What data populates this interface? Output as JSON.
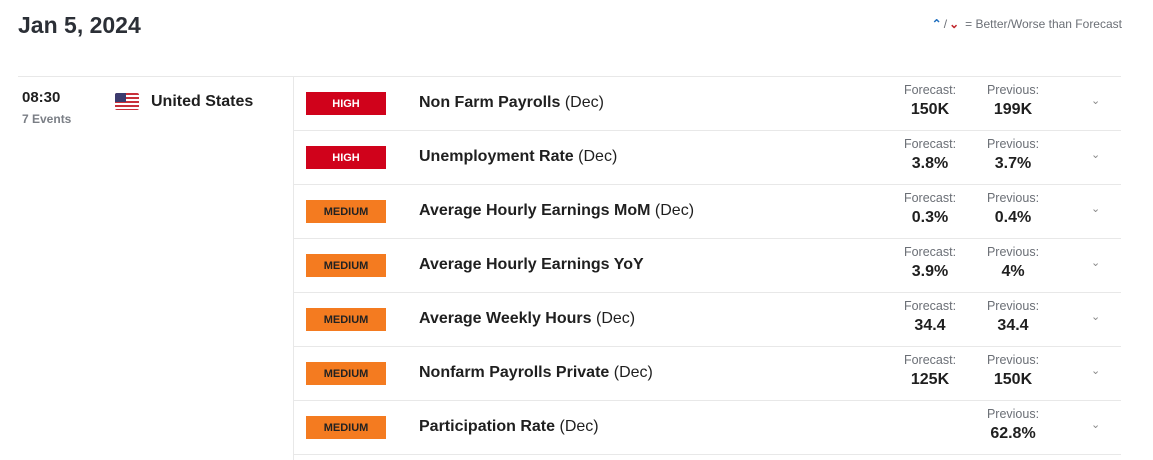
{
  "header": {
    "date": "Jan 5, 2024",
    "legend_text": "= Better/Worse than Forecast",
    "legend_icons": [
      "better-arrow-up-icon",
      "worse-arrow-down-icon"
    ],
    "legend_colors": {
      "better": "#1f6fbf",
      "worse": "#c0262d"
    }
  },
  "group": {
    "time": "08:30",
    "events_count": "7 Events",
    "country": "United States",
    "flag": "us-flag"
  },
  "labels": {
    "forecast": "Forecast:",
    "previous": "Previous:"
  },
  "events": [
    {
      "impact": "HIGH",
      "name": "Non Farm Payrolls",
      "period": "(Dec)",
      "forecast": "150K",
      "previous": "199K"
    },
    {
      "impact": "HIGH",
      "name": "Unemployment Rate",
      "period": "(Dec)",
      "forecast": "3.8%",
      "previous": "3.7%"
    },
    {
      "impact": "MEDIUM",
      "name": "Average Hourly Earnings MoM",
      "period": "(Dec)",
      "forecast": "0.3%",
      "previous": "0.4%"
    },
    {
      "impact": "MEDIUM",
      "name": "Average Hourly Earnings YoY",
      "period": "",
      "forecast": "3.9%",
      "previous": "4%"
    },
    {
      "impact": "MEDIUM",
      "name": "Average Weekly Hours",
      "period": "(Dec)",
      "forecast": "34.4",
      "previous": "34.4"
    },
    {
      "impact": "MEDIUM",
      "name": "Nonfarm Payrolls Private",
      "period": "(Dec)",
      "forecast": "125K",
      "previous": "150K"
    },
    {
      "impact": "MEDIUM",
      "name": "Participation Rate",
      "period": "(Dec)",
      "forecast": null,
      "previous": "62.8%"
    }
  ],
  "colors": {
    "high": "#d0021b",
    "medium": "#f47b20"
  }
}
